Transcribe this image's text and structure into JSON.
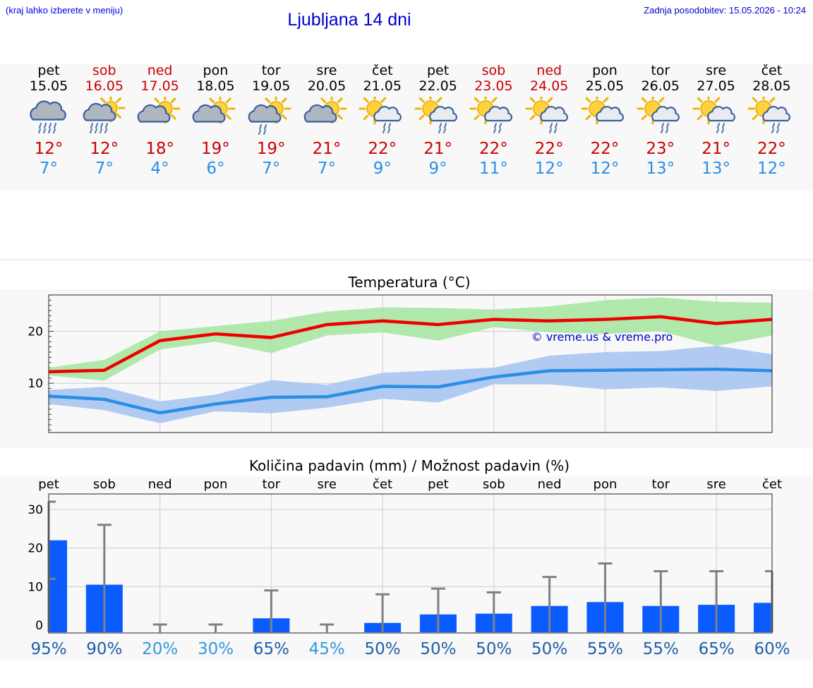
{
  "header": {
    "hint": "(kraj lahko izberete v meniju)",
    "title": "Ljubljana 14 dni",
    "updated": "Zadnja posodobitev: 15.05.2026 - 10:24"
  },
  "colors": {
    "weekend": "#cc0000",
    "max_temp": "#ee0000",
    "min_temp": "#2a8ee6",
    "max_band": "#a8e6a3",
    "min_band": "#a9c4f0",
    "precip_bar": "#0a5cff",
    "error_bar": "#808080"
  },
  "forecast": [
    {
      "day": "pet",
      "date": "15.05",
      "weekend": false,
      "icon": "cloud-heavy-rain-icon",
      "max": "12°",
      "min": "7°"
    },
    {
      "day": "sob",
      "date": "16.05",
      "weekend": true,
      "icon": "sun-cloud-heavy-rain-icon",
      "max": "12°",
      "min": "7°"
    },
    {
      "day": "ned",
      "date": "17.05",
      "weekend": true,
      "icon": "sun-cloud-icon",
      "max": "18°",
      "min": "4°"
    },
    {
      "day": "pon",
      "date": "18.05",
      "weekend": false,
      "icon": "sun-cloud-icon",
      "max": "19°",
      "min": "6°"
    },
    {
      "day": "tor",
      "date": "19.05",
      "weekend": false,
      "icon": "sun-cloud-rain-icon",
      "max": "19°",
      "min": "7°"
    },
    {
      "day": "sre",
      "date": "20.05",
      "weekend": false,
      "icon": "sun-cloud-icon",
      "max": "21°",
      "min": "7°"
    },
    {
      "day": "čet",
      "date": "21.05",
      "weekend": false,
      "icon": "sun-small-cloud-rain-icon",
      "max": "22°",
      "min": "9°"
    },
    {
      "day": "pet",
      "date": "22.05",
      "weekend": false,
      "icon": "sun-small-cloud-rain-icon",
      "max": "21°",
      "min": "9°"
    },
    {
      "day": "sob",
      "date": "23.05",
      "weekend": true,
      "icon": "sun-small-cloud-rain-icon",
      "max": "22°",
      "min": "11°"
    },
    {
      "day": "ned",
      "date": "24.05",
      "weekend": true,
      "icon": "sun-small-cloud-rain-icon",
      "max": "22°",
      "min": "12°"
    },
    {
      "day": "pon",
      "date": "25.05",
      "weekend": false,
      "icon": "sun-small-cloud-icon",
      "max": "22°",
      "min": "12°"
    },
    {
      "day": "tor",
      "date": "26.05",
      "weekend": false,
      "icon": "sun-small-cloud-rain-icon",
      "max": "23°",
      "min": "13°"
    },
    {
      "day": "sre",
      "date": "27.05",
      "weekend": false,
      "icon": "sun-small-cloud-rain-icon",
      "max": "21°",
      "min": "13°"
    },
    {
      "day": "čet",
      "date": "28.05",
      "weekend": false,
      "icon": "sun-small-cloud-rain-icon",
      "max": "22°",
      "min": "12°"
    }
  ],
  "chart_data": [
    {
      "type": "line",
      "title": "Temperatura (°C)",
      "watermark": "© vreme.us & vreme.pro",
      "x": [
        "15.05",
        "16.05",
        "17.05",
        "18.05",
        "19.05",
        "20.05",
        "21.05",
        "22.05",
        "23.05",
        "24.05",
        "25.05",
        "26.05",
        "27.05",
        "28.05"
      ],
      "ylim": [
        0.5,
        27
      ],
      "yticks": [
        10,
        20
      ],
      "grid": true,
      "series": [
        {
          "name": "max",
          "values": [
            12.2,
            12.5,
            18.2,
            19.5,
            18.8,
            21.3,
            22.0,
            21.3,
            22.3,
            22.0,
            22.3,
            22.8,
            21.5,
            22.3
          ],
          "low": [
            11.5,
            10.5,
            16.5,
            18.0,
            15.8,
            19.2,
            19.8,
            18.2,
            20.8,
            19.8,
            19.5,
            20.0,
            17.2,
            19.2
          ],
          "high": [
            13.0,
            14.5,
            20.0,
            21.0,
            22.0,
            23.8,
            24.6,
            24.5,
            24.2,
            24.8,
            26.0,
            26.5,
            25.7,
            25.5
          ]
        },
        {
          "name": "min",
          "values": [
            7.5,
            6.9,
            4.3,
            6.0,
            7.3,
            7.4,
            9.4,
            9.3,
            11.2,
            12.4,
            12.5,
            12.6,
            12.7,
            12.4
          ],
          "low": [
            6.0,
            4.8,
            2.3,
            4.6,
            4.2,
            5.3,
            7.0,
            6.3,
            9.8,
            9.8,
            8.8,
            9.2,
            8.5,
            9.4
          ],
          "high": [
            8.7,
            9.3,
            6.5,
            7.8,
            10.6,
            9.7,
            12.0,
            12.5,
            13.0,
            15.3,
            16.0,
            16.2,
            17.2,
            15.6
          ]
        }
      ]
    },
    {
      "type": "bar",
      "title": "Količina padavin (mm) / Možnost padavin (%)",
      "categories": [
        "pet",
        "sob",
        "ned",
        "pon",
        "tor",
        "sre",
        "čet",
        "pet",
        "sob",
        "ned",
        "pon",
        "tor",
        "sre",
        "čet"
      ],
      "values": [
        22.0,
        10.5,
        0.0,
        0.0,
        1.8,
        0.0,
        0.6,
        2.8,
        3.0,
        5.0,
        6.0,
        5.0,
        5.3,
        5.8
      ],
      "error_low": [
        12.0,
        0.0,
        0.0,
        0.0,
        0.0,
        0.0,
        0.0,
        0.0,
        0.0,
        0.0,
        0.0,
        0.0,
        0.0,
        0.0
      ],
      "error_high": [
        32.0,
        26.0,
        0.2,
        0.2,
        9.0,
        0.2,
        8.0,
        9.5,
        8.5,
        12.5,
        16.0,
        14.0,
        14.0,
        14.0
      ],
      "probability": [
        "95%",
        "90%",
        "20%",
        "30%",
        "65%",
        "45%",
        "50%",
        "50%",
        "50%",
        "50%",
        "55%",
        "55%",
        "65%",
        "60%"
      ],
      "probability_colors": [
        "#1f5fa8",
        "#1f5fa8",
        "#3399dd",
        "#3399dd",
        "#1f5fa8",
        "#3399dd",
        "#1f5fa8",
        "#1f5fa8",
        "#1f5fa8",
        "#1f5fa8",
        "#1f5fa8",
        "#1f5fa8",
        "#1f5fa8",
        "#1f5fa8"
      ],
      "ylim": [
        -2,
        34
      ],
      "yticks": [
        0,
        10,
        20,
        30
      ],
      "grid": true
    }
  ]
}
